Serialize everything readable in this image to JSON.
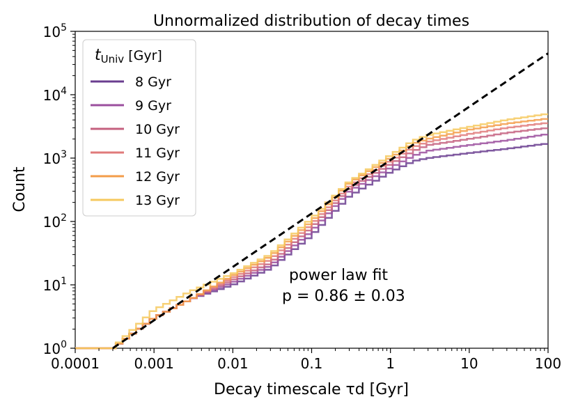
{
  "chart_data": {
    "type": "line",
    "title": "Unnormalized distribution of decay times",
    "xlabel": "Decay timescale τd [Gyr]",
    "ylabel": "Count",
    "xscale": "log",
    "yscale": "log",
    "xlim": [
      0.0001,
      100
    ],
    "ylim": [
      1,
      100000
    ],
    "x_ticks": [
      "0.0001",
      "0.001",
      "0.01",
      "0.1",
      "1",
      "10",
      "100"
    ],
    "y_ticks": [
      {
        "base": "10",
        "exp": "0",
        "value": 1
      },
      {
        "base": "10",
        "exp": "1",
        "value": 10
      },
      {
        "base": "10",
        "exp": "2",
        "value": 100
      },
      {
        "base": "10",
        "exp": "3",
        "value": 1000
      },
      {
        "base": "10",
        "exp": "4",
        "value": 10000
      },
      {
        "base": "10",
        "exp": "5",
        "value": 100000
      }
    ],
    "legend": {
      "title": "tUniv [Gyr]",
      "title_main": "t",
      "title_sub": "Univ",
      "title_rest": " [Gyr]",
      "placement": "top-left"
    },
    "series": [
      {
        "name": "8 Gyr",
        "color": "#6a3d8f",
        "x": [
          0.0001,
          0.0003,
          0.001,
          0.003,
          0.01,
          0.03,
          0.1,
          0.3,
          1,
          2,
          3,
          10,
          30,
          100
        ],
        "y": [
          1,
          1,
          3,
          6,
          10,
          18,
          60,
          250,
          600,
          900,
          1000,
          1200,
          1400,
          1700
        ]
      },
      {
        "name": "9 Gyr",
        "color": "#9b4f9e",
        "x": [
          0.0001,
          0.0003,
          0.001,
          0.003,
          0.01,
          0.03,
          0.1,
          0.3,
          1,
          2,
          3,
          10,
          30,
          100
        ],
        "y": [
          1,
          1,
          3,
          6,
          11,
          20,
          70,
          300,
          700,
          1100,
          1300,
          1600,
          1900,
          2400
        ]
      },
      {
        "name": "10 Gyr",
        "color": "#c4607f",
        "x": [
          0.0001,
          0.0003,
          0.001,
          0.003,
          0.01,
          0.03,
          0.1,
          0.3,
          1,
          2,
          3,
          10,
          30,
          100
        ],
        "y": [
          1,
          1,
          3,
          6,
          12,
          22,
          80,
          330,
          800,
          1300,
          1600,
          2000,
          2500,
          3000
        ]
      },
      {
        "name": "11 Gyr",
        "color": "#e07a7a",
        "x": [
          0.0001,
          0.0003,
          0.001,
          0.003,
          0.01,
          0.03,
          0.1,
          0.3,
          1,
          2,
          3,
          10,
          30,
          100
        ],
        "y": [
          1,
          1,
          3,
          6,
          13,
          25,
          90,
          360,
          900,
          1500,
          1800,
          2400,
          3000,
          3600
        ]
      },
      {
        "name": "12 Gyr",
        "color": "#f39c4a",
        "x": [
          0.0001,
          0.0003,
          0.001,
          0.003,
          0.01,
          0.03,
          0.1,
          0.3,
          1,
          2,
          3,
          10,
          30,
          100
        ],
        "y": [
          1,
          1,
          3,
          6,
          14,
          28,
          100,
          400,
          1000,
          1700,
          2000,
          2800,
          3500,
          4200
        ]
      },
      {
        "name": "13 Gyr",
        "color": "#f6c95e",
        "x": [
          0.0001,
          0.0003,
          0.001,
          0.003,
          0.01,
          0.03,
          0.1,
          0.3,
          1,
          2,
          3,
          10,
          30,
          100
        ],
        "y": [
          1,
          1,
          4,
          8,
          15,
          30,
          110,
          420,
          1100,
          1900,
          2300,
          3100,
          4000,
          5000
        ]
      }
    ],
    "fit_line": {
      "x": [
        0.0003,
        100
      ],
      "y": [
        1,
        45000
      ],
      "style": "dashed",
      "color": "#000000"
    },
    "annotation": {
      "line1": "power law fit",
      "line2": "p = 0.86 ± 0.03"
    }
  }
}
